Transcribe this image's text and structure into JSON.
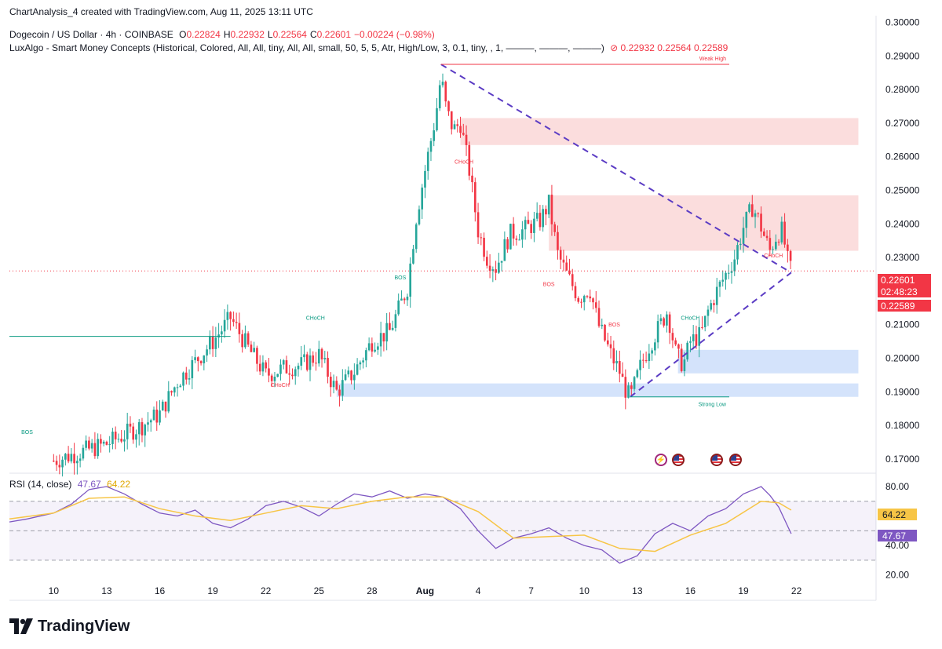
{
  "header": {
    "created_line": "ChartAnalysis_4 created with TradingView.com, Aug 11, 2025 13:11 UTC",
    "symbol": "Dogecoin / US Dollar · 4h · COINBASE",
    "ohlc": [
      {
        "label": "O",
        "value": "0.22824"
      },
      {
        "label": "H",
        "value": "0.22932"
      },
      {
        "label": "L",
        "value": "0.22564"
      },
      {
        "label": "C",
        "value": "0.22601"
      },
      {
        "label": "",
        "value": "−0.00224 (−0.98%)"
      }
    ],
    "indicator": "LuxAlgo - Smart Money Concepts (Historical, Colored, All, All, tiny, All, All, small, 50, 5, 5, Atr, High/Low, 3, 0.1, tiny, , 1, ———, ———, ———)",
    "indicator_values": "⊘  0.22932  0.22564  0.22589"
  },
  "price_axis": {
    "price_tag": "0.22601",
    "countdown_tag": "02:48:23",
    "smc_tag": "0.22589"
  },
  "rsi": {
    "label": "RSI (14, close)",
    "value": "47.67",
    "ma_value": "64.22",
    "tag_value": "47.67",
    "tag_ma": "64.22"
  },
  "colors": {
    "up": "#26a69a",
    "down": "#f23645",
    "rsi_line": "#7e57c2",
    "rsi_ma": "#f7c546",
    "trendline": "#5b3cc4",
    "supply_zone": "#fbd9d9",
    "demand_zone": "#cfe0fb"
  },
  "logo": {
    "text": "TradingView"
  },
  "chart_data": [
    {
      "type": "candlestick",
      "title": "Dogecoin / US Dollar · 4h · COINBASE",
      "x_ticks": [
        "10",
        "13",
        "16",
        "19",
        "22",
        "25",
        "28",
        "Aug",
        "4",
        "7",
        "10",
        "13",
        "16",
        "19",
        "22"
      ],
      "y_ticks": [
        "0.30000",
        "0.29000",
        "0.28000",
        "0.27000",
        "0.26000",
        "0.25000",
        "0.24000",
        "0.23000",
        "0.22000",
        "0.21000",
        "0.20000",
        "0.19000",
        "0.18000",
        "0.17000"
      ],
      "ylim": [
        0.166,
        0.302
      ],
      "legend_position": "top-left",
      "grid": false,
      "close_path": [
        [
          0,
          0.1695
        ],
        [
          3,
          0.1745
        ],
        [
          5,
          0.18
        ],
        [
          6,
          0.1835
        ],
        [
          7,
          0.193
        ],
        [
          8,
          0.199
        ],
        [
          9,
          0.205
        ],
        [
          10,
          0.212
        ],
        [
          11,
          0.203
        ],
        [
          12,
          0.195
        ],
        [
          13,
          0.197
        ],
        [
          14,
          0.198
        ],
        [
          15,
          0.201
        ],
        [
          16,
          0.19
        ],
        [
          17,
          0.196
        ],
        [
          18,
          0.205
        ],
        [
          19,
          0.208
        ],
        [
          20,
          0.221
        ],
        [
          20.5,
          0.242
        ],
        [
          21,
          0.256
        ],
        [
          21.6,
          0.272
        ],
        [
          21.9,
          0.284
        ],
        [
          22.2,
          0.274
        ],
        [
          22.6,
          0.268
        ],
        [
          23,
          0.27
        ],
        [
          23.5,
          0.256
        ],
        [
          24,
          0.238
        ],
        [
          24.5,
          0.23
        ],
        [
          25,
          0.227
        ],
        [
          25.8,
          0.237
        ],
        [
          26.5,
          0.238
        ],
        [
          27.5,
          0.241
        ],
        [
          28,
          0.246
        ],
        [
          28.5,
          0.231
        ],
        [
          29,
          0.225
        ],
        [
          29.7,
          0.218
        ],
        [
          30.3,
          0.221
        ],
        [
          30.8,
          0.21
        ],
        [
          31.2,
          0.205
        ],
        [
          31.6,
          0.2
        ],
        [
          32.0,
          0.196
        ],
        [
          32.3,
          0.191
        ],
        [
          32.6,
          0.188
        ],
        [
          33.2,
          0.198
        ],
        [
          33.7,
          0.204
        ],
        [
          34.2,
          0.209
        ],
        [
          34.7,
          0.214
        ],
        [
          35.2,
          0.201
        ],
        [
          35.6,
          0.198
        ],
        [
          36.0,
          0.205
        ],
        [
          36.6,
          0.207
        ],
        [
          37.0,
          0.214
        ],
        [
          37.5,
          0.22
        ],
        [
          38.0,
          0.225
        ],
        [
          38.5,
          0.23
        ],
        [
          39.0,
          0.239
        ],
        [
          39.5,
          0.245
        ],
        [
          39.8,
          0.242
        ],
        [
          40.2,
          0.236
        ],
        [
          40.5,
          0.232
        ],
        [
          40.9,
          0.237
        ],
        [
          41.2,
          0.238
        ],
        [
          41.5,
          0.229
        ],
        [
          41.7,
          0.226
        ]
      ],
      "zones": [
        {
          "kind": "supply",
          "x_start": 23,
          "x_end": 45.5,
          "y_low": 0.2635,
          "y_high": 0.2715
        },
        {
          "kind": "supply",
          "x_start": 28,
          "x_end": 45.5,
          "y_low": 0.232,
          "y_high": 0.2485
        },
        {
          "kind": "demand",
          "x_start": 35.3,
          "x_end": 45.5,
          "y_low": 0.1955,
          "y_high": 0.2025
        },
        {
          "kind": "demand",
          "x_start": 16,
          "x_end": 45.5,
          "y_low": 0.1885,
          "y_high": 0.1925
        }
      ],
      "trendlines": [
        {
          "from": [
            21.9,
            0.2875
          ],
          "to": [
            41.7,
            0.2255
          ]
        },
        {
          "from": [
            32.6,
            0.1885
          ],
          "to": [
            41.7,
            0.2255
          ]
        }
      ],
      "levels": [
        {
          "label": "Weak High",
          "value": 0.2875,
          "x_start": 21.9,
          "x_end": 38.2
        },
        {
          "label": "Strong Low",
          "value": 0.1885,
          "x_start": 32.6,
          "x_end": 38.2
        },
        {
          "label": "",
          "value": 0.2065,
          "x_start": -2.5,
          "x_end": 10.0
        }
      ],
      "annotations": [
        {
          "text": "BOS",
          "x": -1.5,
          "y": 0.1775
        },
        {
          "text": "CHoCH",
          "x": 12.8,
          "y": 0.1915
        },
        {
          "text": "CHoCH",
          "x": 14.8,
          "y": 0.2115
        },
        {
          "text": "BOS",
          "x": 19.6,
          "y": 0.2235
        },
        {
          "text": "CHoCH",
          "x": 23.2,
          "y": 0.258
        },
        {
          "text": "BOS",
          "x": 28.0,
          "y": 0.2215
        },
        {
          "text": "BOS",
          "x": 31.7,
          "y": 0.2095
        },
        {
          "text": "CHoCH",
          "x": 36.0,
          "y": 0.2115
        },
        {
          "text": "CHoCH",
          "x": 40.7,
          "y": 0.23
        }
      ]
    },
    {
      "type": "line",
      "title": "RSI (14, close)",
      "ylim": [
        15,
        88
      ],
      "y_ticks": [
        "80.00",
        "60.00",
        "40.00",
        "20.00"
      ],
      "bands": [
        70,
        50,
        30
      ],
      "series": [
        {
          "name": "RSI",
          "values": [
            [
              -2.5,
              56
            ],
            [
              -1.5,
              58
            ],
            [
              0,
              62
            ],
            [
              1,
              68
            ],
            [
              2,
              78
            ],
            [
              3,
              80
            ],
            [
              4,
              75
            ],
            [
              5,
              68
            ],
            [
              6,
              62
            ],
            [
              7,
              60
            ],
            [
              8,
              64
            ],
            [
              9,
              55
            ],
            [
              10,
              52
            ],
            [
              11,
              58
            ],
            [
              12,
              67
            ],
            [
              13,
              70
            ],
            [
              14,
              66
            ],
            [
              15,
              60
            ],
            [
              16,
              68
            ],
            [
              17,
              75
            ],
            [
              18,
              73
            ],
            [
              19,
              77
            ],
            [
              20,
              72
            ],
            [
              21,
              75
            ],
            [
              22,
              73
            ],
            [
              23,
              65
            ],
            [
              24,
              50
            ],
            [
              25,
              38
            ],
            [
              26,
              45
            ],
            [
              27,
              48
            ],
            [
              28,
              52
            ],
            [
              29,
              45
            ],
            [
              30,
              40
            ],
            [
              31,
              37
            ],
            [
              32,
              28
            ],
            [
              33,
              33
            ],
            [
              34,
              48
            ],
            [
              35,
              55
            ],
            [
              36,
              50
            ],
            [
              37,
              60
            ],
            [
              38,
              65
            ],
            [
              39,
              75
            ],
            [
              40,
              80
            ],
            [
              40.5,
              74
            ],
            [
              41,
              66
            ],
            [
              41.7,
              48
            ]
          ]
        },
        {
          "name": "RSI-based MA",
          "values": [
            [
              -2.5,
              58
            ],
            [
              0,
              62
            ],
            [
              2,
              72
            ],
            [
              4,
              73
            ],
            [
              6,
              65
            ],
            [
              8,
              60
            ],
            [
              10,
              57
            ],
            [
              12,
              62
            ],
            [
              14,
              67
            ],
            [
              16,
              65
            ],
            [
              18,
              70
            ],
            [
              20,
              73
            ],
            [
              22,
              73
            ],
            [
              24,
              63
            ],
            [
              26,
              45
            ],
            [
              28,
              46
            ],
            [
              30,
              47
            ],
            [
              32,
              38
            ],
            [
              34,
              36
            ],
            [
              36,
              47
            ],
            [
              38,
              55
            ],
            [
              40,
              70
            ],
            [
              41,
              69
            ],
            [
              41.7,
              64
            ]
          ]
        }
      ]
    }
  ]
}
